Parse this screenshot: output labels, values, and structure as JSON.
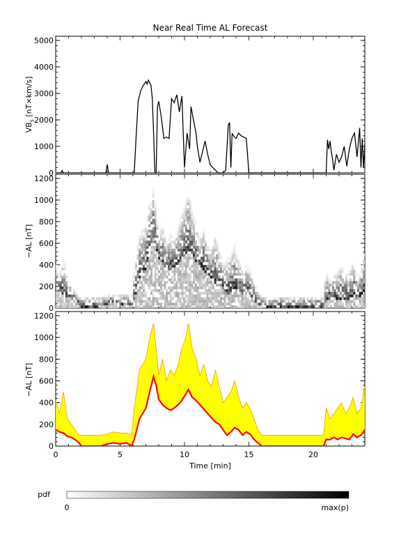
{
  "chart_data": [
    {
      "type": "line",
      "title": "Near Real Time AL Forecast",
      "ylabel": "VBs [nT×km/s]",
      "ylabel_main": "VB",
      "ylabel_sub": "s",
      "ylabel_rest": " [nT×km/s]",
      "xlim": [
        0,
        24
      ],
      "ylim": [
        0,
        5000
      ],
      "yticks": [
        "0",
        "1000",
        "2000",
        "3000",
        "4000",
        "5000"
      ],
      "series": [
        {
          "color": "#000000",
          "x": [
            0,
            0.4,
            0.5,
            0.6,
            3.9,
            4.0,
            4.1,
            6.1,
            6.25,
            6.4,
            6.6,
            6.8,
            7.0,
            7.1,
            7.2,
            7.3,
            7.4,
            7.5,
            7.6,
            7.7,
            7.8,
            7.9,
            8.0,
            8.2,
            8.4,
            8.6,
            8.8,
            9.0,
            9.2,
            9.4,
            9.6,
            9.8,
            10.0,
            10.2,
            10.4,
            10.5,
            10.7,
            10.9,
            11.0,
            11.2,
            11.4,
            11.6,
            11.8,
            12.0,
            12.2,
            12.4,
            12.6,
            12.8,
            13.0,
            13.2,
            13.4,
            13.5,
            13.6,
            13.7,
            13.8,
            14.0,
            14.2,
            14.4,
            14.6,
            14.8,
            15.0,
            21.0,
            21.1,
            21.2,
            21.3,
            21.4,
            21.5,
            21.6,
            21.8,
            22.0,
            22.2,
            22.4,
            22.6,
            22.8,
            23.0,
            23.2,
            23.4,
            23.6,
            23.7,
            23.8,
            23.9,
            24.0
          ],
          "values": [
            0,
            0,
            90,
            0,
            0,
            320,
            0,
            0,
            1400,
            2700,
            3100,
            3300,
            3450,
            3350,
            3500,
            3400,
            3300,
            2800,
            1500,
            0,
            0,
            2500,
            2700,
            2100,
            1300,
            1350,
            1300,
            2800,
            2650,
            2950,
            2300,
            2900,
            200,
            1500,
            900,
            2500,
            2000,
            1500,
            1000,
            400,
            800,
            1200,
            700,
            300,
            200,
            100,
            0,
            0,
            0,
            100,
            1800,
            1900,
            200,
            1500,
            1400,
            1300,
            1500,
            1400,
            1350,
            1300,
            0,
            0,
            1250,
            900,
            1200,
            800,
            500,
            100,
            700,
            400,
            600,
            1000,
            250,
            900,
            1300,
            1500,
            600,
            1700,
            200,
            1300,
            200,
            1100
          ]
        }
      ]
    },
    {
      "type": "heatmap",
      "ylabel": "−AL [nT]",
      "xlim": [
        0,
        24
      ],
      "ylim": [
        0,
        1200
      ],
      "yticks": [
        "0",
        "200",
        "400",
        "600",
        "800",
        "1000",
        "1200"
      ]
    },
    {
      "type": "area",
      "ylabel": "−AL [nT]",
      "xlabel": "Time [min]",
      "xlim": [
        0,
        24
      ],
      "ylim": [
        0,
        1200
      ],
      "xticks": [
        "0",
        "5",
        "10",
        "15",
        "20"
      ],
      "yticks": [
        "0",
        "200",
        "400",
        "600",
        "800",
        "1000",
        "1200"
      ],
      "series": [
        {
          "color": "#ff0000",
          "x": [
            0,
            0.3,
            0.6,
            0.9,
            1.2,
            1.5,
            1.8,
            2.0,
            2.5,
            3.0,
            3.5,
            4.0,
            4.5,
            5.0,
            5.5,
            5.9,
            6.1,
            6.5,
            7.0,
            7.3,
            7.6,
            7.8,
            8.0,
            8.3,
            8.6,
            8.9,
            9.2,
            9.5,
            9.8,
            10.1,
            10.3,
            10.6,
            10.9,
            11.2,
            11.5,
            11.8,
            12.1,
            12.4,
            12.7,
            13.0,
            13.3,
            13.6,
            13.9,
            14.2,
            14.5,
            14.8,
            15.1,
            15.4,
            15.7,
            16.0,
            16.5,
            20.8,
            21.0,
            21.3,
            21.6,
            21.9,
            22.2,
            22.5,
            22.8,
            23.1,
            23.4,
            23.7,
            24.0
          ],
          "values": [
            150,
            130,
            120,
            90,
            80,
            60,
            30,
            0,
            0,
            0,
            0,
            20,
            30,
            20,
            30,
            0,
            60,
            250,
            350,
            500,
            640,
            560,
            430,
            380,
            350,
            330,
            350,
            380,
            420,
            480,
            520,
            450,
            420,
            380,
            340,
            300,
            260,
            220,
            200,
            150,
            100,
            130,
            170,
            150,
            100,
            130,
            110,
            60,
            30,
            0,
            0,
            0,
            60,
            60,
            80,
            60,
            80,
            70,
            60,
            110,
            80,
            100,
            150
          ]
        },
        {
          "color": "#ffff00",
          "x": [
            0,
            0.3,
            0.6,
            0.9,
            1.2,
            1.5,
            1.8,
            2.0,
            2.5,
            3.0,
            3.5,
            4.0,
            4.5,
            5.0,
            5.5,
            5.9,
            6.1,
            6.5,
            7.0,
            7.3,
            7.6,
            7.8,
            8.0,
            8.3,
            8.6,
            8.9,
            9.2,
            9.5,
            9.8,
            10.1,
            10.3,
            10.6,
            10.9,
            11.2,
            11.5,
            11.8,
            12.1,
            12.4,
            12.7,
            13.0,
            13.3,
            13.6,
            13.9,
            14.2,
            14.5,
            14.8,
            15.1,
            15.4,
            15.7,
            16.0,
            16.5,
            20.8,
            21.0,
            21.3,
            21.6,
            21.9,
            22.2,
            22.5,
            22.8,
            23.1,
            23.4,
            23.7,
            24.0
          ],
          "values": [
            420,
            300,
            500,
            250,
            200,
            150,
            100,
            100,
            100,
            100,
            100,
            110,
            130,
            120,
            120,
            100,
            350,
            700,
            800,
            1000,
            1130,
            900,
            650,
            800,
            600,
            700,
            650,
            750,
            900,
            1000,
            1130,
            900,
            800,
            650,
            750,
            600,
            550,
            700,
            550,
            400,
            450,
            500,
            600,
            450,
            350,
            400,
            350,
            250,
            150,
            100,
            100,
            100,
            350,
            250,
            300,
            350,
            400,
            300,
            350,
            450,
            300,
            350,
            550
          ]
        }
      ]
    }
  ],
  "colorbar": {
    "label": "pdf",
    "min_label": "0",
    "max_label": "max(p)"
  }
}
